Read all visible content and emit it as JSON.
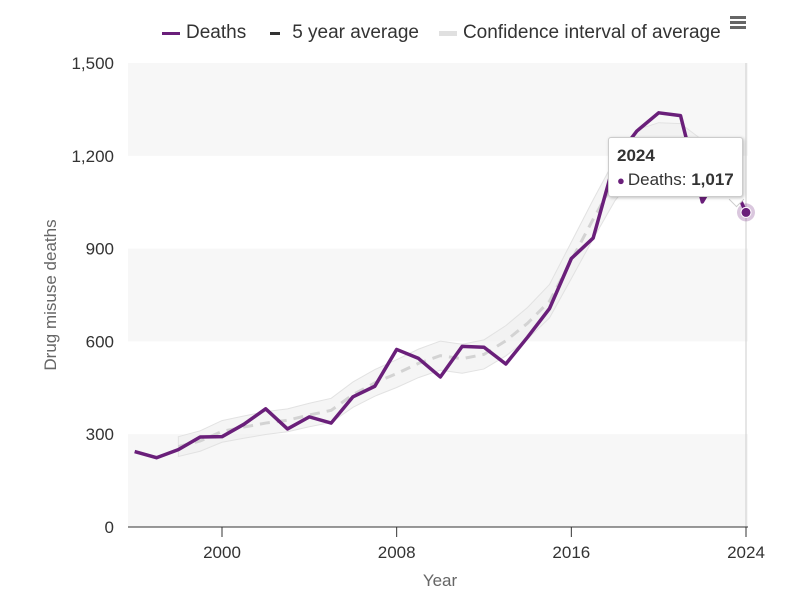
{
  "chart_data": {
    "type": "line",
    "title": "",
    "xlabel": "Year",
    "ylabel": "Drug misuse deaths",
    "xlim": [
      1995.8,
      2024.2
    ],
    "ylim": [
      0,
      1500
    ],
    "yticks": [
      0,
      300,
      600,
      900,
      1200,
      1500
    ],
    "ytick_labels": [
      "0",
      "300",
      "600",
      "900",
      "1,200",
      "1,500"
    ],
    "xticks": [
      2000,
      2008,
      2016,
      2024
    ],
    "xtick_labels": [
      "2000",
      "2008",
      "2016",
      "2024"
    ],
    "grid": "alternating horizontal bands",
    "legend_position": "top",
    "series": [
      {
        "name": "Deaths",
        "color": "#6a1f7a",
        "style": "solid",
        "x": [
          1996,
          1997,
          1998,
          1999,
          2000,
          2001,
          2002,
          2003,
          2004,
          2005,
          2006,
          2007,
          2008,
          2009,
          2010,
          2011,
          2012,
          2013,
          2014,
          2015,
          2016,
          2017,
          2018,
          2019,
          2020,
          2021,
          2022,
          2023,
          2024
        ],
        "values": [
          244,
          224,
          250,
          291,
          292,
          332,
          382,
          317,
          356,
          336,
          421,
          455,
          574,
          545,
          485,
          584,
          581,
          527,
          614,
          706,
          868,
          934,
          1187,
          1280,
          1339,
          1330,
          1051,
          1172,
          1017
        ]
      },
      {
        "name": "5 year average",
        "color": "#d3d3d3",
        "style": "dashed",
        "x": [
          1998,
          1999,
          2000,
          2001,
          2002,
          2003,
          2004,
          2005,
          2006,
          2007,
          2008,
          2009,
          2010,
          2011,
          2012,
          2013,
          2014,
          2015,
          2016,
          2017,
          2018,
          2019,
          2020,
          2021,
          2022
        ],
        "values": [
          260,
          278,
          309,
          323,
          336,
          345,
          362,
          377,
          428,
          466,
          496,
          529,
          554,
          544,
          558,
          602,
          659,
          730,
          862,
          995,
          1122,
          1214,
          1237,
          1234,
          1182
        ]
      },
      {
        "name": "Confidence interval of average",
        "color": "#e6e6e6",
        "style": "band",
        "x": [
          1998,
          1999,
          2000,
          2001,
          2002,
          2003,
          2004,
          2005,
          2006,
          2007,
          2008,
          2009,
          2010,
          2011,
          2012,
          2013,
          2014,
          2015,
          2016,
          2017,
          2018,
          2019,
          2020,
          2021,
          2022
        ],
        "lower": [
          228,
          245,
          274,
          287,
          299,
          308,
          324,
          338,
          387,
          423,
          451,
          483,
          507,
          497,
          511,
          553,
          608,
          676,
          803,
          932,
          1055,
          1144,
          1167,
          1164,
          1113
        ],
        "upper": [
          292,
          311,
          344,
          359,
          373,
          382,
          400,
          416,
          469,
          509,
          541,
          575,
          601,
          591,
          605,
          651,
          710,
          784,
          921,
          1058,
          1189,
          1284,
          1307,
          1304,
          1251
        ]
      }
    ],
    "tooltip": {
      "title": "2024",
      "series_label": "Deaths",
      "value": "1,017"
    }
  },
  "legend": {
    "items": [
      {
        "label": "Deaths",
        "color": "#6a1f7a"
      },
      {
        "label": "5 year average",
        "color": "#333333"
      },
      {
        "label": "Confidence interval of average",
        "color": "#e6e6e6"
      }
    ]
  },
  "menu": {
    "icon": "hamburger-menu-icon"
  }
}
